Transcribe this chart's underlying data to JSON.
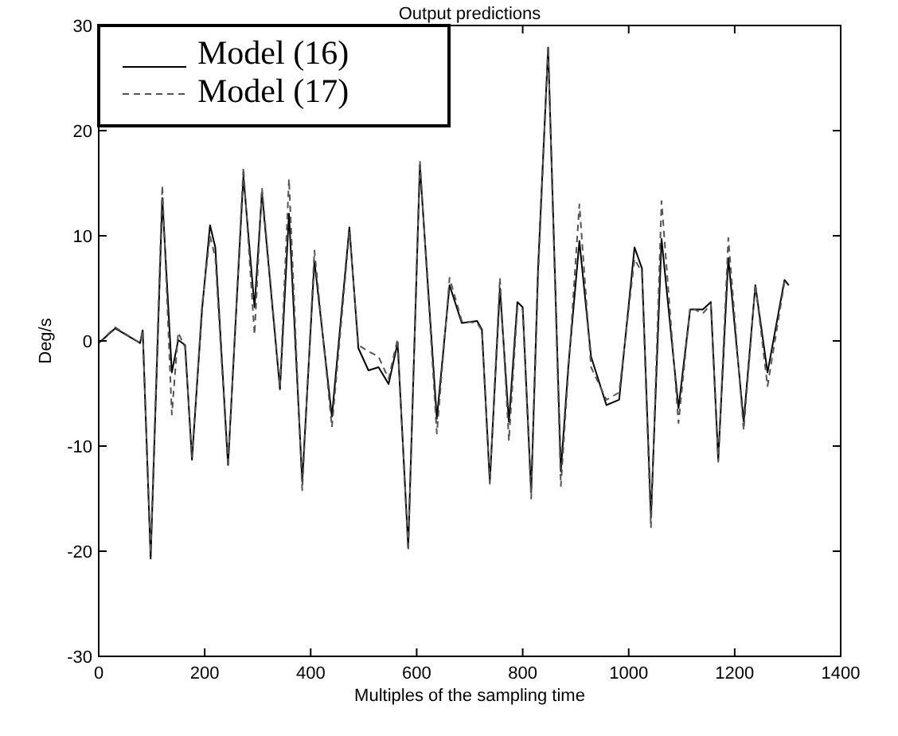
{
  "chart_data": {
    "type": "line",
    "title": "Output predictions",
    "xlabel": "Multiples of the sampling time",
    "ylabel": "Deg/s",
    "xlim": [
      0,
      1400
    ],
    "xticks": [
      0,
      200,
      400,
      600,
      800,
      1000,
      1200,
      1400
    ],
    "ylim": [
      -30,
      30
    ],
    "yticks": [
      -30,
      -20,
      -10,
      0,
      10,
      20,
      30
    ],
    "grid": false,
    "legend": "top left",
    "series": [
      {
        "name": "Model (16)",
        "color": "#000000",
        "line_style": "solid",
        "x": [
          0,
          31,
          78,
          83,
          98,
          120,
          138,
          150,
          163,
          176,
          195,
          210,
          220,
          244,
          273,
          294,
          308,
          342,
          359,
          384,
          407,
          440,
          473,
          490,
          509,
          528,
          547,
          564,
          584,
          606,
          638,
          662,
          685,
          714,
          723,
          738,
          757,
          774,
          790,
          800,
          816,
          829,
          848,
          872,
          886,
          907,
          929,
          958,
          982,
          1011,
          1025,
          1042,
          1062,
          1094,
          1116,
          1140,
          1155,
          1169,
          1188,
          1217,
          1239,
          1262,
          1294,
          1302
        ],
        "values": [
          -0.2,
          1.2,
          -0.2,
          1.0,
          -20.7,
          13.6,
          -3.0,
          0.1,
          -0.4,
          -11.3,
          3.0,
          11.0,
          8.9,
          -11.8,
          15.7,
          3.2,
          14.1,
          -4.6,
          12.1,
          -13.4,
          7.6,
          -7.2,
          10.8,
          -0.7,
          -2.8,
          -2.5,
          -4.1,
          -0.2,
          -19.6,
          16.7,
          -7.4,
          5.3,
          1.7,
          1.9,
          1.1,
          -13.4,
          5.0,
          -7.7,
          3.7,
          3.2,
          -14.4,
          6.9,
          27.9,
          -12.4,
          -2.5,
          9.5,
          -1.5,
          -6.1,
          -5.6,
          8.9,
          6.9,
          -16.8,
          9.7,
          -6.4,
          3.0,
          3.0,
          3.7,
          -11.3,
          7.9,
          -7.7,
          5.3,
          -3.0,
          5.8,
          5.3
        ]
      },
      {
        "name": "Model (17)",
        "color": "#555555",
        "line_style": "dashed",
        "x": [
          0,
          31,
          78,
          83,
          98,
          120,
          138,
          150,
          163,
          176,
          195,
          210,
          220,
          244,
          273,
          294,
          308,
          342,
          359,
          384,
          407,
          440,
          473,
          490,
          509,
          528,
          547,
          564,
          584,
          606,
          638,
          662,
          685,
          714,
          723,
          738,
          757,
          774,
          790,
          800,
          816,
          829,
          848,
          872,
          886,
          907,
          929,
          958,
          982,
          1011,
          1025,
          1042,
          1062,
          1094,
          1116,
          1140,
          1155,
          1169,
          1188,
          1217,
          1239,
          1262,
          1294,
          1302
        ],
        "values": [
          -0.2,
          1.3,
          -0.2,
          1.0,
          -20.2,
          14.8,
          -7.0,
          0.8,
          -0.6,
          -11.0,
          3.4,
          10.0,
          7.9,
          -12.0,
          16.5,
          0.6,
          14.6,
          -4.4,
          15.4,
          -14.2,
          8.6,
          -8.2,
          10.4,
          -0.4,
          -1.0,
          -1.5,
          -3.6,
          0.2,
          -20.0,
          17.2,
          -8.8,
          6.0,
          1.9,
          1.7,
          1.0,
          -13.6,
          6.0,
          -9.5,
          3.2,
          3.0,
          -15.0,
          6.0,
          28.0,
          -13.8,
          -3.0,
          13.0,
          -2.5,
          -5.6,
          -4.9,
          7.8,
          6.5,
          -17.8,
          13.3,
          -7.8,
          3.2,
          2.6,
          3.5,
          -11.5,
          9.8,
          -8.5,
          5.4,
          -4.3,
          5.6,
          5.4
        ]
      }
    ]
  }
}
